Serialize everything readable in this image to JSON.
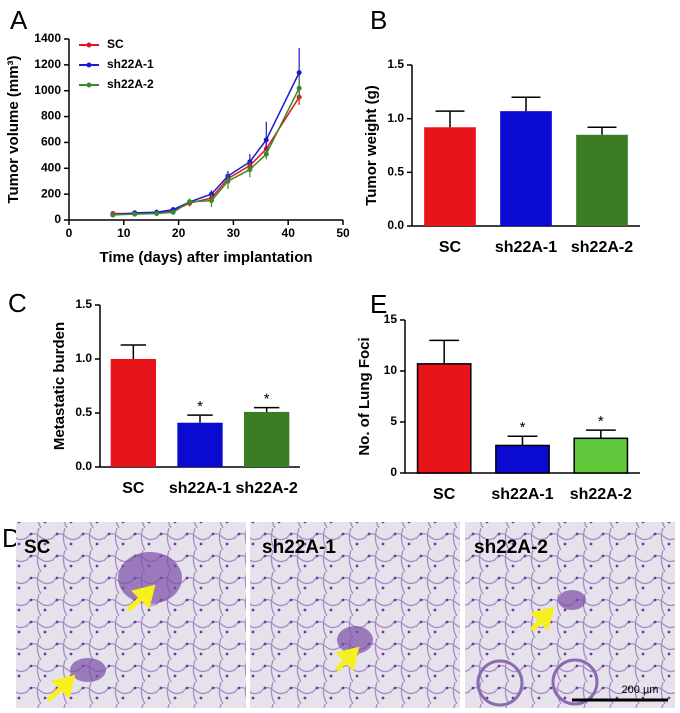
{
  "chart_data": [
    {
      "type": "line",
      "panel_label": "A",
      "xlabel": "Time (days) after implantation",
      "ylabel": "Tumor volume (mm³)",
      "x": [
        8,
        12,
        16,
        19,
        22,
        26,
        29,
        33,
        36,
        42
      ],
      "series": [
        {
          "name": "SC",
          "color": "#e8141c",
          "values": [
            50,
            50,
            50,
            70,
            130,
            170,
            320,
            420,
            550,
            950
          ],
          "errors": [
            15,
            15,
            15,
            20,
            25,
            30,
            40,
            50,
            70,
            60
          ]
        },
        {
          "name": "sh22A-1",
          "color": "#1a1ad0",
          "values": [
            40,
            55,
            60,
            80,
            140,
            200,
            340,
            450,
            620,
            1140
          ],
          "errors": [
            15,
            20,
            20,
            20,
            25,
            30,
            40,
            60,
            140,
            190
          ]
        },
        {
          "name": "sh22A-2",
          "color": "#3a8a2a",
          "values": [
            40,
            45,
            50,
            60,
            140,
            150,
            300,
            390,
            510,
            1020
          ],
          "errors": [
            15,
            15,
            15,
            20,
            25,
            50,
            60,
            60,
            40,
            90
          ]
        }
      ],
      "xlim": [
        0,
        50
      ],
      "xticks": [
        0,
        10,
        20,
        30,
        40,
        50
      ],
      "ylim": [
        0,
        1400
      ],
      "yticks": [
        0,
        200,
        400,
        600,
        800,
        1000,
        1200,
        1400
      ],
      "legend": "upper left"
    },
    {
      "type": "bar",
      "panel_label": "B",
      "ylabel": "Tumor weight (g)",
      "categories": [
        "SC",
        "sh22A-1",
        "sh22A-2"
      ],
      "values": [
        0.92,
        1.07,
        0.85
      ],
      "errors": [
        0.15,
        0.13,
        0.07
      ],
      "colors": [
        "#e8141c",
        "#0a0ad0",
        "#3a7d22"
      ],
      "ylim": [
        0,
        1.5
      ],
      "yticks": [
        {
          "value": 0,
          "label": "0.0"
        },
        {
          "value": 0.5,
          "label": "0.5"
        },
        {
          "value": 1,
          "label": "1.0"
        },
        {
          "value": 1.5,
          "label": "1.5"
        }
      ],
      "bar_outline": false
    },
    {
      "type": "bar",
      "panel_label": "C",
      "ylabel": "Metastatic burden",
      "categories": [
        "SC",
        "sh22A-1",
        "sh22A-2"
      ],
      "values": [
        1.0,
        0.41,
        0.51
      ],
      "errors": [
        0.13,
        0.07,
        0.04
      ],
      "colors": [
        "#e8141c",
        "#0a0ad0",
        "#3a7d22"
      ],
      "annotations": [
        null,
        "*",
        "*"
      ],
      "ylim": [
        0,
        1.5
      ],
      "yticks": [
        {
          "value": 0,
          "label": "0.0"
        },
        {
          "value": 0.5,
          "label": "0.5"
        },
        {
          "value": 1,
          "label": "1.0"
        },
        {
          "value": 1.5,
          "label": "1.5"
        }
      ],
      "bar_outline": false
    },
    {
      "type": "bar",
      "panel_label": "E",
      "ylabel": "No. of Lung Foci",
      "categories": [
        "SC",
        "sh22A-1",
        "sh22A-2"
      ],
      "values": [
        10.7,
        2.7,
        3.4
      ],
      "errors": [
        2.3,
        0.9,
        0.8
      ],
      "colors": [
        "#e8141c",
        "#0a0ad0",
        "#5ec83a"
      ],
      "annotations": [
        null,
        "*",
        "*"
      ],
      "ylim": [
        0,
        15
      ],
      "yticks": [
        0,
        5,
        10,
        15
      ],
      "bar_outline": true
    }
  ],
  "histology": {
    "panel_label": "D",
    "images": [
      {
        "label": "SC"
      },
      {
        "label": "sh22A-1"
      },
      {
        "label": "sh22A-2"
      }
    ],
    "scale_bar": "200 µm"
  }
}
